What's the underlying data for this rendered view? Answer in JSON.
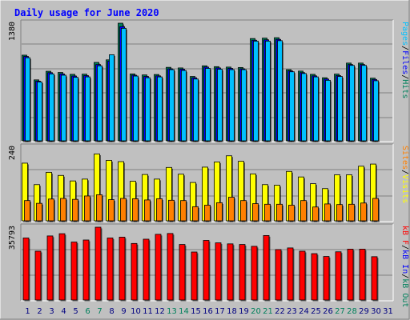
{
  "title": "Daily usage for June 2020",
  "colors": {
    "background": "#c0c0c0",
    "panel": "#c0c0c0",
    "hits": "#00805c",
    "files": "#0000ff",
    "pages": "#00c0ff",
    "visits": "#ffff00",
    "sites": "#ff8000",
    "kbytes": "#ff0000",
    "kb_in": "#0000ff",
    "kb_out": "#00805c",
    "weekend": "#00805c",
    "weekday": "#000080",
    "title": "#0000ff"
  },
  "legends": {
    "top": [
      {
        "text": "Pages",
        "color": "#00c0ff"
      },
      {
        "text": "/",
        "color": "#000000"
      },
      {
        "text": "Files",
        "color": "#0000ff"
      },
      {
        "text": "/",
        "color": "#000000"
      },
      {
        "text": "Hits",
        "color": "#00805c"
      }
    ],
    "middle": [
      {
        "text": "Sites",
        "color": "#ff8000"
      },
      {
        "text": "/",
        "color": "#000000"
      },
      {
        "text": "Visits",
        "color": "#ffff00"
      }
    ],
    "bottom": [
      {
        "text": "kB F",
        "color": "#ff0000"
      },
      {
        "text": "/",
        "color": "#000000"
      },
      {
        "text": "kB In",
        "color": "#0000ff"
      },
      {
        "text": "/",
        "color": "#000000"
      },
      {
        "text": "kB Out",
        "color": "#00805c"
      }
    ]
  },
  "chart_data": {
    "type": "bar",
    "title": "Daily usage for June 2020",
    "categories": [
      "1",
      "2",
      "3",
      "4",
      "5",
      "6",
      "7",
      "8",
      "9",
      "10",
      "11",
      "12",
      "13",
      "14",
      "15",
      "16",
      "17",
      "18",
      "19",
      "20",
      "21",
      "22",
      "23",
      "24",
      "25",
      "26",
      "27",
      "28",
      "29",
      "30",
      "31"
    ],
    "weekend_days": [
      "6",
      "7",
      "13",
      "14",
      "20",
      "21",
      "27",
      "28"
    ],
    "panels": [
      {
        "name": "top",
        "max_label": "1380",
        "ylim": [
          0,
          1380
        ],
        "series": [
          {
            "name": "Hits",
            "values": [
              1005,
              715,
              816,
              802,
              780,
              782,
              920,
              950,
              1380,
              785,
              773,
              778,
              862,
              855,
              755,
              880,
              870,
              865,
              860,
              1200,
              1205,
              1210,
              835,
              818,
              780,
              740,
              783,
              912,
              912,
              735,
              null
            ]
          },
          {
            "name": "Files",
            "values": [
              990,
              700,
              800,
              785,
              760,
              765,
              895,
              935,
              1340,
              770,
              755,
              762,
              845,
              840,
              740,
              865,
              855,
              850,
              845,
              1180,
              1185,
              1190,
              820,
              800,
              762,
              725,
              765,
              895,
              895,
              720,
              null
            ]
          },
          {
            "name": "Pages",
            "values": [
              975,
              690,
              785,
              770,
              745,
              750,
              880,
              1010,
              1320,
              760,
              740,
              750,
              835,
              825,
              725,
              850,
              840,
              835,
              835,
              1170,
              1170,
              1175,
              810,
              790,
              750,
              710,
              755,
              885,
              885,
              705,
              null
            ]
          }
        ]
      },
      {
        "name": "middle",
        "max_label": "240",
        "ylim": [
          0,
          240
        ],
        "series": [
          {
            "name": "Visits",
            "values": [
              188,
              118,
              158,
              148,
              130,
              136,
              218,
              197,
              193,
              129,
              151,
              136,
              174,
              152,
              125,
              175,
              192,
              212,
              194,
              153,
              118,
              116,
              161,
              143,
              121,
              105,
              150,
              150,
              178,
              185,
              null
            ]
          },
          {
            "name": "Sites",
            "values": [
              66,
              57,
              71,
              73,
              70,
              81,
              85,
              69,
              73,
              72,
              68,
              72,
              67,
              66,
              46,
              51,
              59,
              77,
              66,
              56,
              54,
              54,
              51,
              66,
              45,
              55,
              53,
              54,
              58,
              73,
              null
            ]
          }
        ]
      },
      {
        "name": "bottom",
        "max_label": "35793",
        "ylim": [
          0,
          35793
        ],
        "series": [
          {
            "name": "kB F",
            "values": [
              30500,
              24000,
              31500,
              32600,
              28500,
              29500,
              35793,
              30500,
              30900,
              27800,
              29900,
              32300,
              32700,
              27300,
              23600,
              29300,
              28100,
              27600,
              27300,
              26400,
              31700,
              24800,
              25600,
              24000,
              22800,
              21400,
              23700,
              25000,
              25000,
              21300,
              null
            ]
          }
        ]
      }
    ]
  }
}
